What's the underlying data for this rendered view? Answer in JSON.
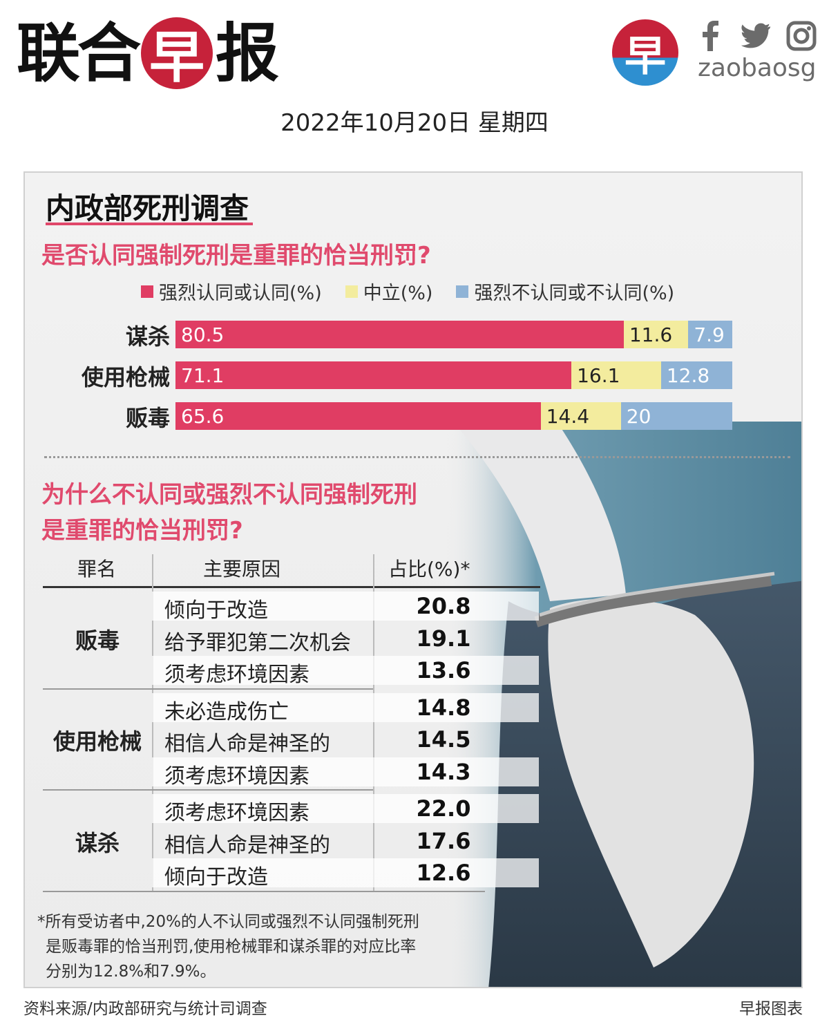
{
  "header": {
    "masthead_chars": [
      "联",
      "合",
      "早",
      "报"
    ],
    "logo_char": "早",
    "social_icons": [
      "facebook-icon",
      "twitter-icon",
      "instagram-icon"
    ],
    "handle": "zaobaosg",
    "date": "2022年10月20日 星期四"
  },
  "colors": {
    "agree": "#e03d63",
    "neutral": "#f3ec9e",
    "disagree": "#8fb3d6",
    "accent_text": "#e04a6d"
  },
  "infographic": {
    "title": "内政部死刑调查",
    "question1": "是否认同强制死刑是重罪的恰当刑罚?",
    "question2_line1": "为什么不认同或强烈不认同强制死刑",
    "question2_line2": "是重罪的恰当刑罚?",
    "table_headers": [
      "罪名",
      "主要原因",
      "占比(%)*"
    ],
    "table_groups": [
      {
        "crime": "贩毒",
        "rows": [
          {
            "reason": "倾向于改造",
            "pct": "20.8"
          },
          {
            "reason": "给予罪犯第二次机会",
            "pct": "19.1"
          },
          {
            "reason": "须考虑环境因素",
            "pct": "13.6"
          }
        ]
      },
      {
        "crime": "使用枪械",
        "rows": [
          {
            "reason": "未必造成伤亡",
            "pct": "14.8"
          },
          {
            "reason": "相信人命是神圣的",
            "pct": "14.5"
          },
          {
            "reason": "须考虑环境因素",
            "pct": "14.3"
          }
        ]
      },
      {
        "crime": "谋杀",
        "rows": [
          {
            "reason": "须考虑环境因素",
            "pct": "22.0"
          },
          {
            "reason": "相信人命是神圣的",
            "pct": "17.6"
          },
          {
            "reason": "倾向于改造",
            "pct": "12.6"
          }
        ]
      }
    ],
    "footnote_lines": [
      "*所有受访者中,20%的人不认同或强烈不认同强制死刑",
      "是贩毒罪的恰当刑罚,使用枪械罪和谋杀罪的对应比率",
      "分别为12.8%和7.9%。"
    ]
  },
  "chart_data": {
    "type": "bar",
    "orientation": "horizontal",
    "stacked": true,
    "categories": [
      "谋杀",
      "使用枪械",
      "贩毒"
    ],
    "series": [
      {
        "name": "强烈认同或认同(%)",
        "values": [
          80.5,
          71.1,
          65.6
        ]
      },
      {
        "name": "中立(%)",
        "values": [
          11.6,
          16.1,
          14.4
        ]
      },
      {
        "name": "强烈不认同或不认同(%)",
        "values": [
          7.9,
          12.8,
          20
        ]
      }
    ],
    "value_labels": [
      [
        "80.5",
        "71.1",
        "65.6"
      ],
      [
        "11.6",
        "16.1",
        "14.4"
      ],
      [
        "7.9",
        "12.8",
        "20"
      ]
    ],
    "xlim": [
      0,
      100
    ],
    "legend_position": "top"
  },
  "footer": {
    "source": "资料来源/内政部研究与统计司调查",
    "credit": "早报图表"
  }
}
